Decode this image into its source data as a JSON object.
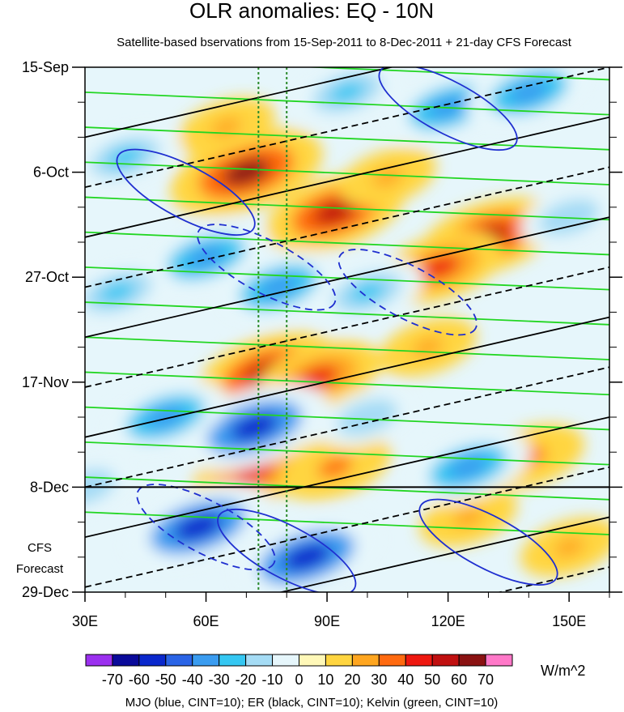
{
  "chart_data": {
    "type": "heatmap",
    "title": "OLR anomalies: EQ - 10N",
    "subtitle": "Satellite-based bservations from 15-Sep-2011 to 8-Dec-2011 + 21-day CFS Forecast",
    "x_ticks": [
      "30E",
      "60E",
      "90E",
      "120E",
      "150E"
    ],
    "x_values": [
      30,
      60,
      90,
      120,
      150
    ],
    "xlim": [
      30,
      160
    ],
    "y_ticks": [
      "15-Sep",
      "6-Oct",
      "27-Oct",
      "17-Nov",
      "8-Dec",
      "29-Dec"
    ],
    "y_days": [
      0,
      21,
      42,
      63,
      84,
      105
    ],
    "ylim_days": [
      0,
      105
    ],
    "forecast_start_day": 84,
    "forecast_label_line1": "CFS",
    "forecast_label_line2": "Forecast",
    "reference_lines_lon": [
      73,
      80
    ],
    "colorbar_labels": [
      "-70",
      "-60",
      "-50",
      "-40",
      "-30",
      "-20",
      "-10",
      "0",
      "10",
      "20",
      "30",
      "40",
      "50",
      "60",
      "70"
    ],
    "colorbar_colors": [
      "#9b30ef",
      "#0a0a9a",
      "#0a28cc",
      "#2a64e6",
      "#3a9cf0",
      "#35c7f2",
      "#a5dcf5",
      "#e6f6fb",
      "#fff8b8",
      "#ffd540",
      "#ffa620",
      "#ff6a10",
      "#ee1810",
      "#c01010",
      "#8a1212",
      "#ff78c8"
    ],
    "units": "W/m^2",
    "footer": "MJO (blue, CINT=10); ER (black, CINT=10); Kelvin (green, CINT=10)",
    "series": [
      {
        "name": "MJO",
        "color": "#1f2fd0"
      },
      {
        "name": "ER",
        "color": "#000000"
      },
      {
        "name": "Kelvin",
        "color": "#22d622"
      }
    ],
    "anomalies": [
      {
        "lon": 70,
        "day": 21,
        "value": 60
      },
      {
        "lon": 92,
        "day": 29,
        "value": 50
      },
      {
        "lon": 130,
        "day": 34,
        "value": 50
      },
      {
        "lon": 118,
        "day": 40,
        "value": 40
      },
      {
        "lon": 75,
        "day": 61,
        "value": 50
      },
      {
        "lon": 88,
        "day": 62,
        "value": 40
      },
      {
        "lon": 72,
        "day": 81,
        "value": 40
      },
      {
        "lon": 92,
        "day": 80,
        "value": 30
      },
      {
        "lon": 140,
        "day": 78,
        "value": 30
      },
      {
        "lon": 125,
        "day": 90,
        "value": 20
      },
      {
        "lon": 65,
        "day": 12,
        "value": 20
      },
      {
        "lon": 105,
        "day": 22,
        "value": 20
      },
      {
        "lon": 150,
        "day": 96,
        "value": 20
      },
      {
        "lon": 115,
        "day": 56,
        "value": 20
      },
      {
        "lon": 58,
        "day": 92,
        "value": -60
      },
      {
        "lon": 85,
        "day": 98,
        "value": -60
      },
      {
        "lon": 72,
        "day": 72,
        "value": -60
      },
      {
        "lon": 60,
        "day": 38,
        "value": -40
      },
      {
        "lon": 78,
        "day": 44,
        "value": -40
      },
      {
        "lon": 120,
        "day": 8,
        "value": -40
      },
      {
        "lon": 140,
        "day": 5,
        "value": -40
      },
      {
        "lon": 50,
        "day": 70,
        "value": -40
      },
      {
        "lon": 40,
        "day": 18,
        "value": -30
      },
      {
        "lon": 38,
        "day": 45,
        "value": -30
      },
      {
        "lon": 100,
        "day": 45,
        "value": -30
      },
      {
        "lon": 125,
        "day": 80,
        "value": -40
      },
      {
        "lon": 100,
        "day": 70,
        "value": -20
      },
      {
        "lon": 150,
        "day": 30,
        "value": -20
      },
      {
        "lon": 30,
        "day": 84,
        "value": -20
      },
      {
        "lon": 95,
        "day": 5,
        "value": -30
      }
    ]
  }
}
